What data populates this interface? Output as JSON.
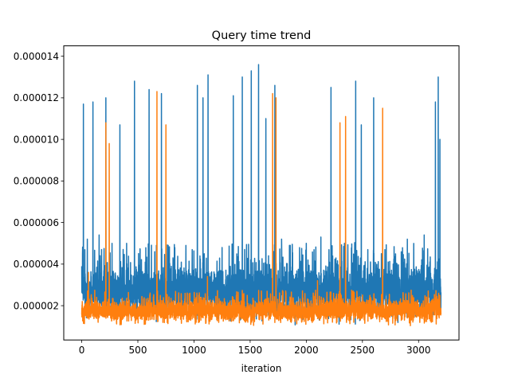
{
  "chart_data": {
    "type": "line",
    "title": "Query time trend",
    "xlabel": "iteration",
    "ylabel": "",
    "xlim": [
      -160,
      3360
    ],
    "ylim": [
      3.5e-07,
      1.45e-05
    ],
    "x_ticks": [
      0,
      500,
      1000,
      1500,
      2000,
      2500,
      3000
    ],
    "x_tick_labels": [
      "0",
      "500",
      "1000",
      "1500",
      "2000",
      "2500",
      "3000"
    ],
    "y_ticks": [
      2e-06,
      4e-06,
      6e-06,
      8e-06,
      1e-05,
      1.2e-05,
      1.4e-05
    ],
    "y_tick_labels": [
      "0.000002",
      "0.000004",
      "0.000006",
      "0.000008",
      "0.000010",
      "0.000012",
      "0.000014"
    ],
    "grid": false,
    "n_points": 3200,
    "series": [
      {
        "color": "#1f77b4",
        "baseline": {
          "min": 1e-06,
          "typical_max": 4e-06
        },
        "spikes": [
          {
            "x": 0,
            "y": 3.9e-06
          },
          {
            "x": 15,
            "y": 1.17e-05
          },
          {
            "x": 50,
            "y": 5.2e-06
          },
          {
            "x": 100,
            "y": 1.18e-05
          },
          {
            "x": 155,
            "y": 5.4e-06
          },
          {
            "x": 215,
            "y": 1.2e-05
          },
          {
            "x": 270,
            "y": 5e-06
          },
          {
            "x": 340,
            "y": 1.07e-05
          },
          {
            "x": 400,
            "y": 5e-06
          },
          {
            "x": 470,
            "y": 1.28e-05
          },
          {
            "x": 520,
            "y": 4.7e-06
          },
          {
            "x": 600,
            "y": 1.24e-05
          },
          {
            "x": 650,
            "y": 4.6e-06
          },
          {
            "x": 710,
            "y": 1.22e-05
          },
          {
            "x": 770,
            "y": 4.9e-06
          },
          {
            "x": 1030,
            "y": 1.26e-05
          },
          {
            "x": 1080,
            "y": 1.2e-05
          },
          {
            "x": 1125,
            "y": 1.31e-05
          },
          {
            "x": 1250,
            "y": 4.8e-06
          },
          {
            "x": 1350,
            "y": 1.21e-05
          },
          {
            "x": 1430,
            "y": 1.3e-05
          },
          {
            "x": 1510,
            "y": 1.33e-05
          },
          {
            "x": 1575,
            "y": 1.36e-05
          },
          {
            "x": 1640,
            "y": 1.1e-05
          },
          {
            "x": 1720,
            "y": 1.26e-05
          },
          {
            "x": 1780,
            "y": 5.2e-06
          },
          {
            "x": 1850,
            "y": 4.9e-06
          },
          {
            "x": 2000,
            "y": 5e-06
          },
          {
            "x": 2130,
            "y": 5.3e-06
          },
          {
            "x": 2220,
            "y": 1.25e-05
          },
          {
            "x": 2340,
            "y": 5e-06
          },
          {
            "x": 2440,
            "y": 1.28e-05
          },
          {
            "x": 2490,
            "y": 1.07e-05
          },
          {
            "x": 2600,
            "y": 1.2e-05
          },
          {
            "x": 2700,
            "y": 4.7e-06
          },
          {
            "x": 2900,
            "y": 5.2e-06
          },
          {
            "x": 3050,
            "y": 5.4e-06
          },
          {
            "x": 3150,
            "y": 1.18e-05
          },
          {
            "x": 3175,
            "y": 1.3e-05
          },
          {
            "x": 3190,
            "y": 1e-05
          }
        ]
      },
      {
        "color": "#ff7f0e",
        "baseline": {
          "min": 1e-06,
          "typical_max": 2.3e-06
        },
        "spikes": [
          {
            "x": 60,
            "y": 3.6e-06
          },
          {
            "x": 215,
            "y": 1.08e-05
          },
          {
            "x": 245,
            "y": 9.8e-06
          },
          {
            "x": 670,
            "y": 1.23e-05
          },
          {
            "x": 750,
            "y": 1.07e-05
          },
          {
            "x": 1120,
            "y": 3.4e-06
          },
          {
            "x": 1700,
            "y": 1.22e-05
          },
          {
            "x": 1730,
            "y": 1.2e-05
          },
          {
            "x": 2100,
            "y": 3.2e-06
          },
          {
            "x": 2300,
            "y": 1.08e-05
          },
          {
            "x": 2350,
            "y": 1.11e-05
          },
          {
            "x": 2680,
            "y": 1.15e-05
          }
        ]
      }
    ]
  }
}
